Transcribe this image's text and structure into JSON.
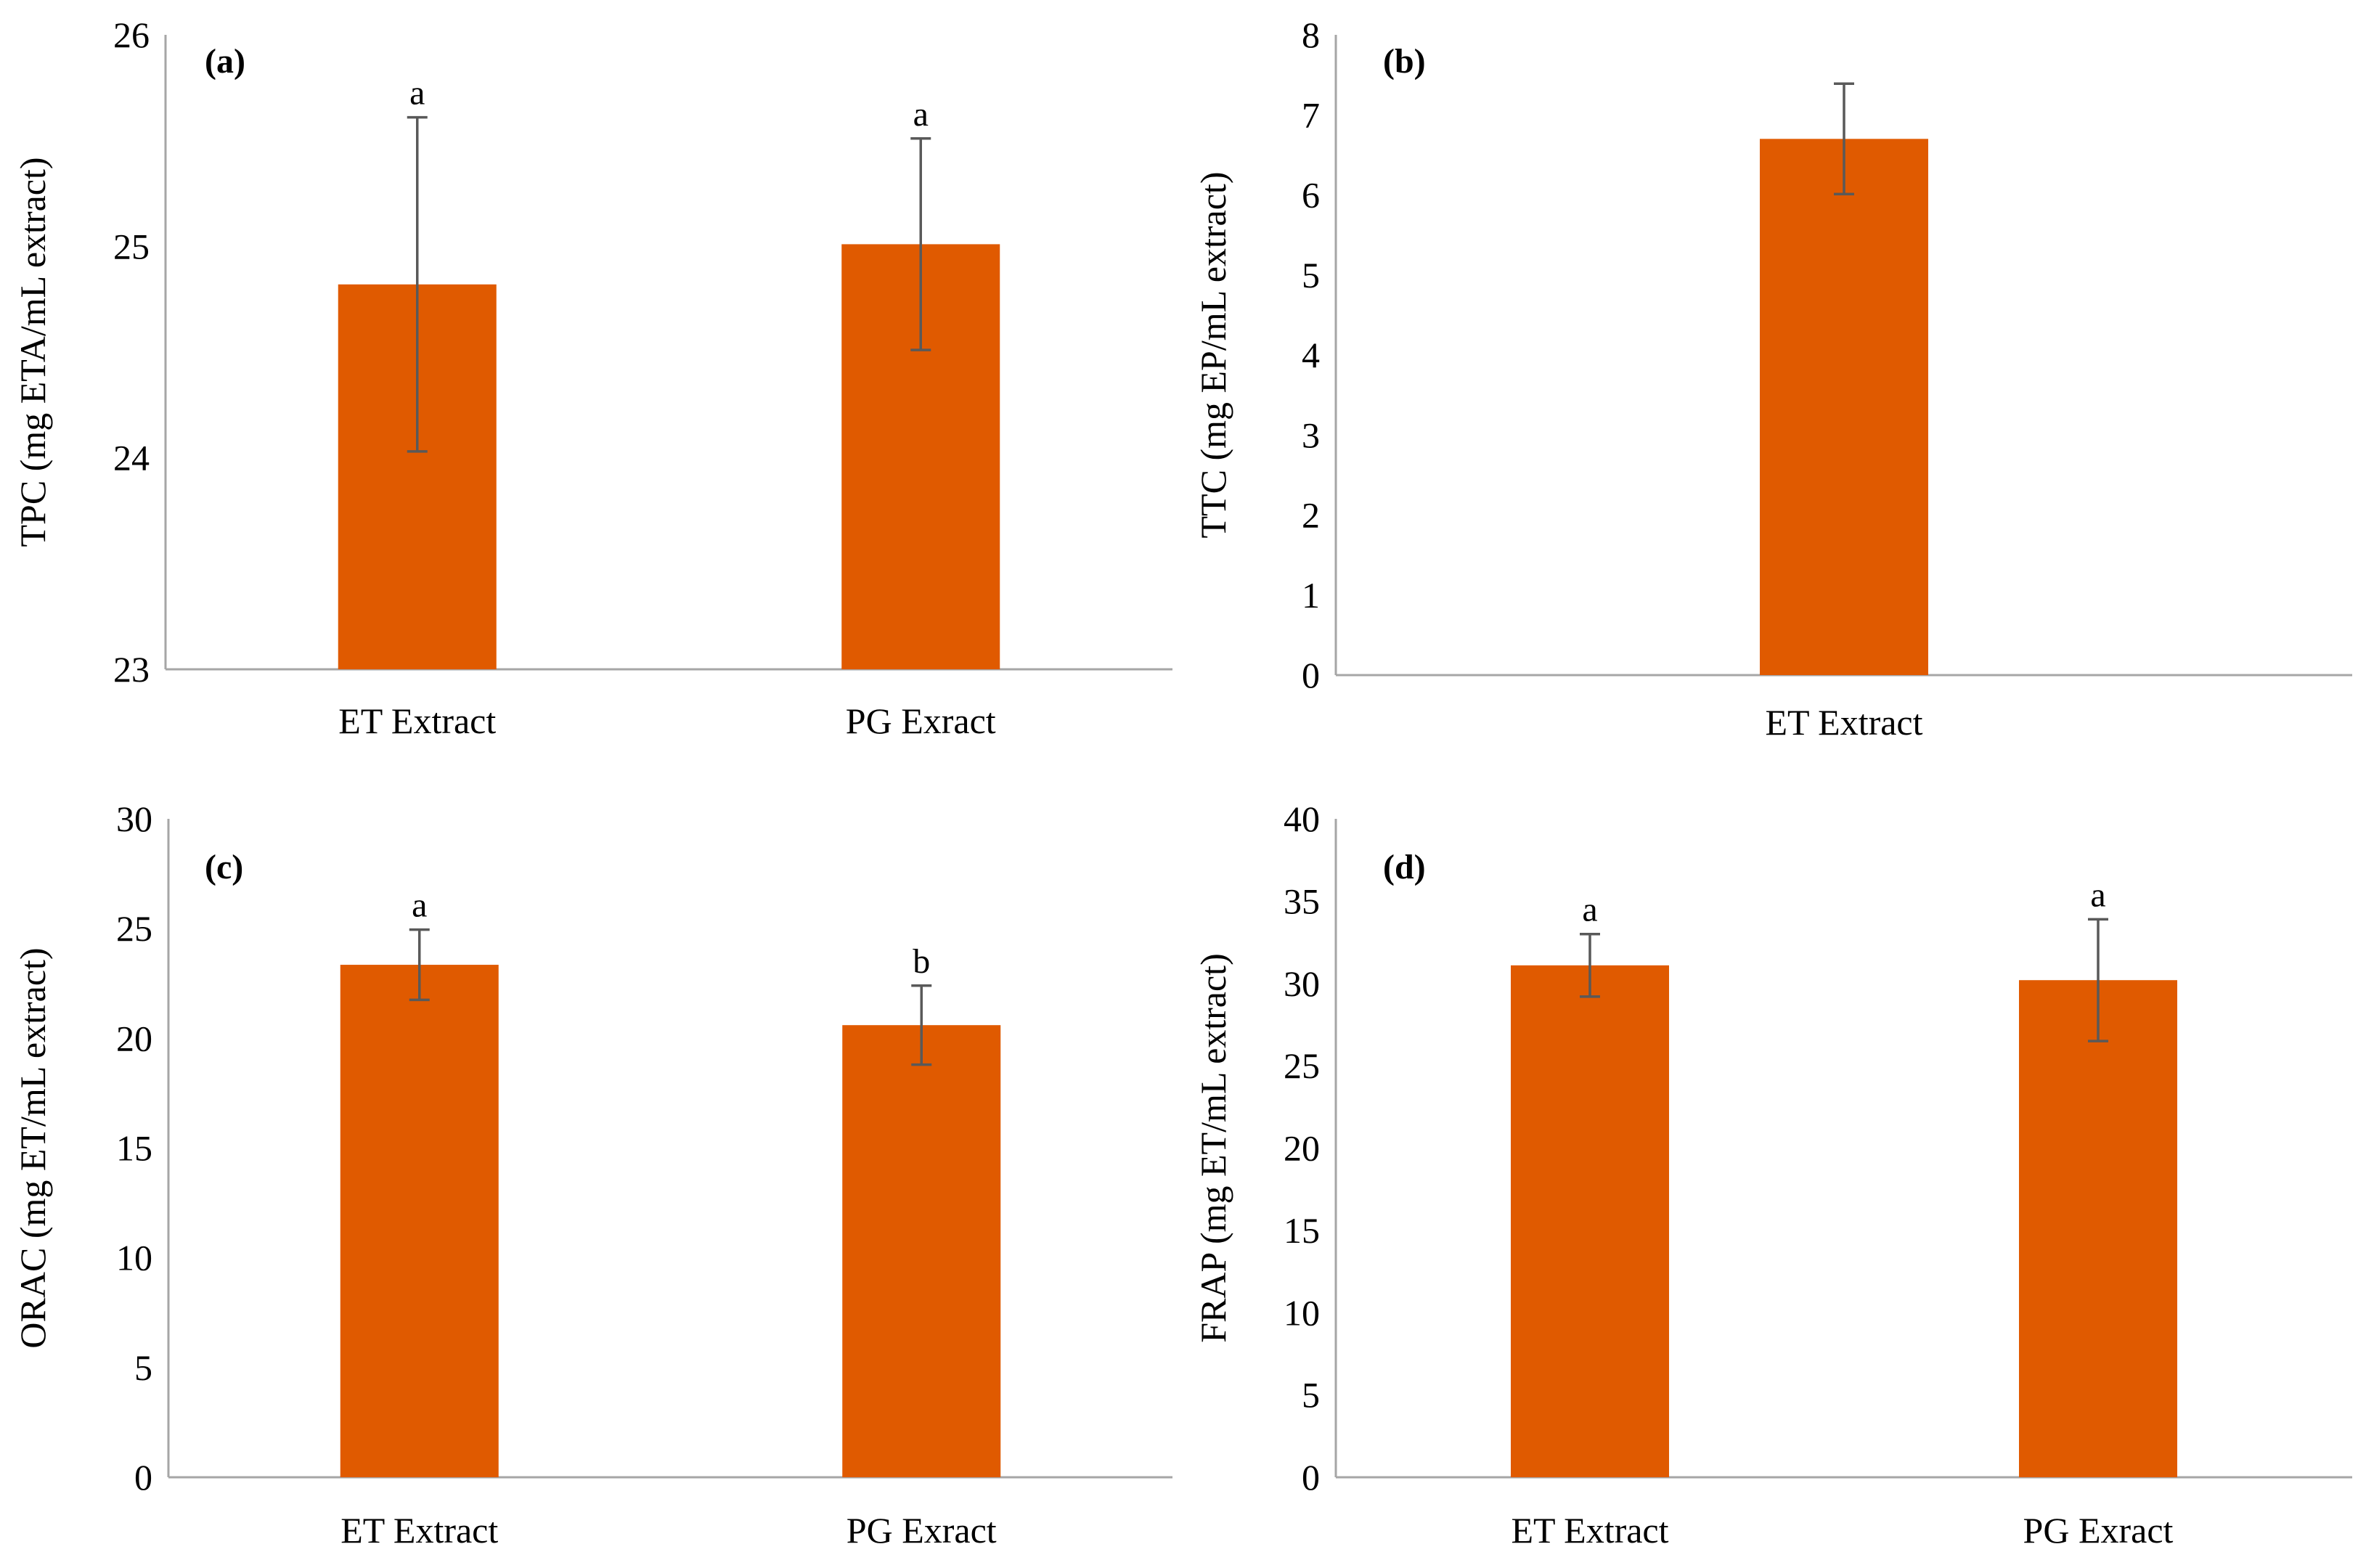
{
  "figure_title": "",
  "colors": {
    "bar": "#E05A00",
    "axis": "#a6a6a6",
    "errorbar": "#595959",
    "text": "#000000"
  },
  "chart_data": [
    {
      "type": "bar",
      "title": "(a)",
      "ylabel": "TPC (mg ETA/mL  extract)",
      "xlabel": "",
      "ylim": [
        23,
        26
      ],
      "yticks": [
        23,
        24,
        25,
        26
      ],
      "categories": [
        "ET Extract",
        "PG Exract"
      ],
      "values": [
        24.82,
        25.01
      ],
      "errors": [
        0.79,
        0.5
      ],
      "significance": [
        "a",
        "a"
      ]
    },
    {
      "type": "bar",
      "title": "(b)",
      "ylabel": "TTC (mg EP/mL extract)",
      "xlabel": "",
      "ylim": [
        0,
        8
      ],
      "yticks": [
        0,
        1,
        2,
        3,
        4,
        5,
        6,
        7,
        8
      ],
      "categories": [
        "ET Extract"
      ],
      "values": [
        6.7
      ],
      "errors": [
        0.69
      ],
      "significance": [
        ""
      ]
    },
    {
      "type": "bar",
      "title": "(c)",
      "ylabel": "ORAC  (mg ET/mL extract)",
      "xlabel": "",
      "ylim": [
        0,
        30
      ],
      "yticks": [
        0,
        5,
        10,
        15,
        20,
        25,
        30
      ],
      "categories": [
        "ET Extract",
        "PG Exract"
      ],
      "values": [
        23.35,
        20.6
      ],
      "errors": [
        1.6,
        1.8
      ],
      "significance": [
        "a",
        "b"
      ]
    },
    {
      "type": "bar",
      "title": "(d)",
      "ylabel": "FRAP (mg ET/mL extract)",
      "xlabel": "",
      "ylim": [
        0,
        40
      ],
      "yticks": [
        0,
        5,
        10,
        15,
        20,
        25,
        30,
        35,
        40
      ],
      "categories": [
        "ET Extract",
        "PG Exract"
      ],
      "values": [
        31.1,
        30.2
      ],
      "errors": [
        1.9,
        3.7
      ],
      "significance": [
        "a",
        "a"
      ]
    }
  ]
}
